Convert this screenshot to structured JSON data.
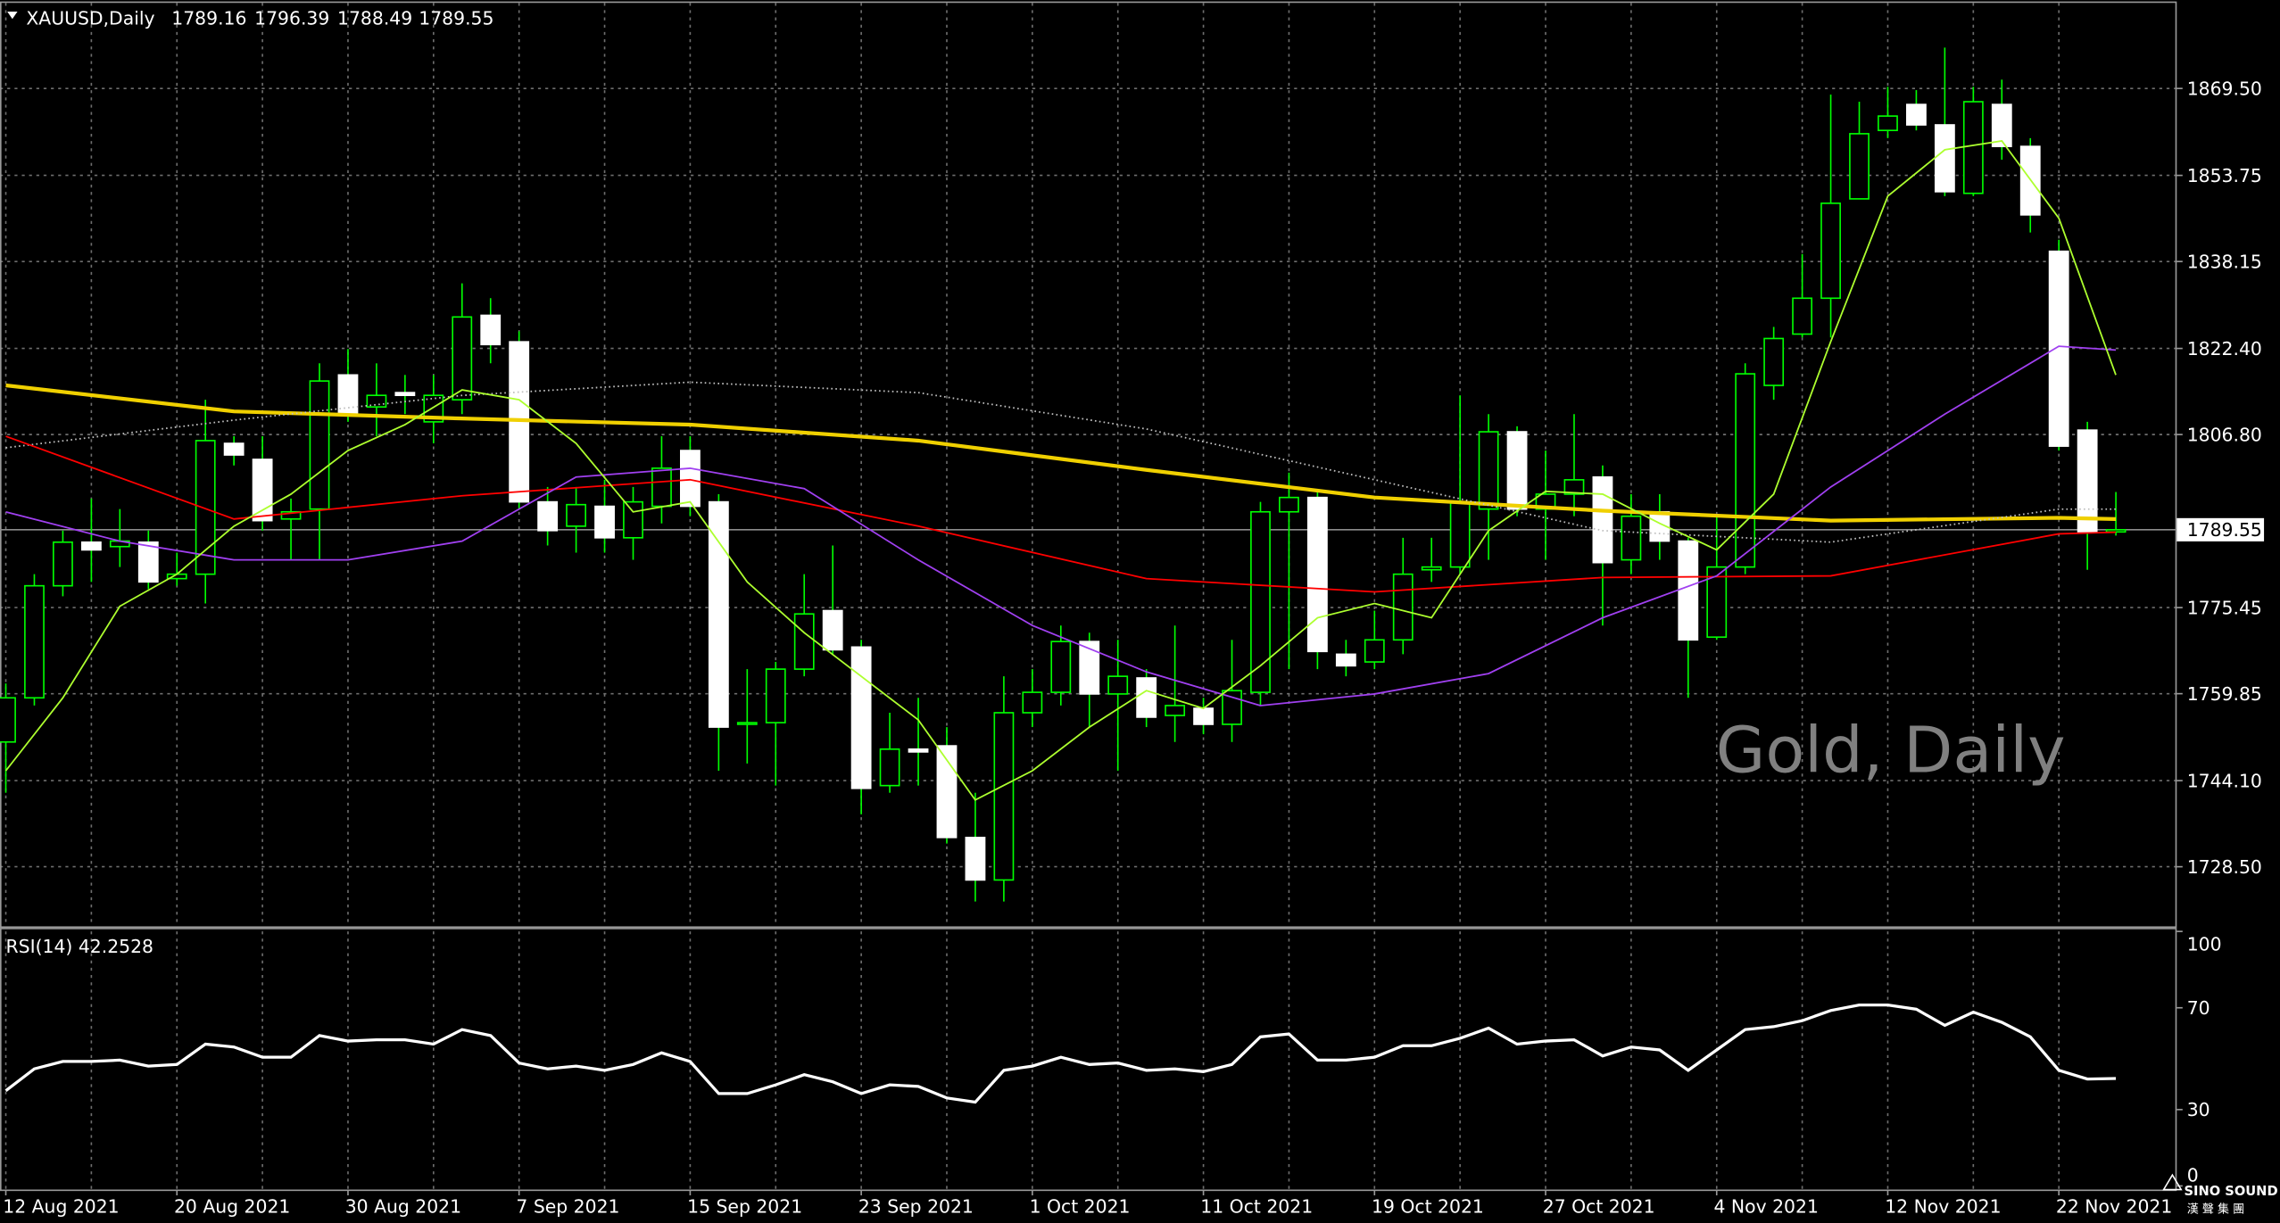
{
  "chart_data": [
    {
      "type": "candlestick",
      "symbol": "XAUUSD,Daily",
      "header_values": [
        1789.16,
        1796.39,
        1788.49,
        1789.55
      ],
      "watermark": "Gold, Daily",
      "logo": [
        "SINO SOUND",
        "漢 聲 集 團"
      ],
      "categories": [
        "12 Aug 2021",
        null,
        null,
        null,
        null,
        null,
        "20 Aug 2021",
        null,
        null,
        null,
        null,
        null,
        "30 Aug 2021",
        null,
        null,
        null,
        null,
        null,
        "7 Sep 2021",
        null,
        null,
        null,
        null,
        null,
        "15 Sep 2021",
        null,
        null,
        null,
        null,
        null,
        "23 Sep 2021",
        null,
        null,
        null,
        null,
        null,
        "1 Oct 2021",
        null,
        null,
        null,
        null,
        null,
        "11 Oct 2021",
        null,
        null,
        null,
        null,
        null,
        "19 Oct 2021",
        null,
        null,
        null,
        null,
        null,
        "27 Oct 2021",
        null,
        null,
        null,
        null,
        null,
        "4 Nov 2021",
        null,
        null,
        null,
        null,
        null,
        "12 Nov 2021",
        null,
        null,
        null,
        null,
        null,
        "22 Nov 2021",
        null,
        null
      ],
      "open": [
        1751.1,
        1759.1,
        1779.4,
        1787.3,
        1786.5,
        1787.3,
        1780.7,
        1781.5,
        1805.2,
        1802.3,
        1791.5,
        1793.3,
        1817.6,
        1811.8,
        1814.4,
        1809.1,
        1813.1,
        1828.4,
        1823.6,
        1794.6,
        1790.2,
        1793.8,
        1788.1,
        1793.8,
        1803.9,
        1794.6,
        1754.3,
        1754.6,
        1764.3,
        1774.9,
        1768.3,
        1743.2,
        1749.8,
        1750.4,
        1733.8,
        1726.1,
        1756.4,
        1760.1,
        1769.3,
        1759.8,
        1762.7,
        1755.9,
        1757.2,
        1754.3,
        1760.1,
        1792.8,
        1795.4,
        1767.0,
        1765.6,
        1769.6,
        1782.3,
        1782.8,
        1793.3,
        1807.3,
        1793.3,
        1796.0,
        1799.1,
        1784.1,
        1792.8,
        1787.5,
        1770.1,
        1782.8,
        1815.7,
        1825.0,
        1831.5,
        1849.5,
        1861.9,
        1866.6,
        1862.9,
        1850.5,
        1866.6,
        1859.0,
        1840.0,
        1807.6,
        1789.16
      ],
      "high": [
        1761.7,
        1781.5,
        1789.4,
        1795.2,
        1793.3,
        1789.4,
        1785.4,
        1813.1,
        1806.5,
        1806.5,
        1795.2,
        1819.7,
        1822.3,
        1819.7,
        1817.6,
        1817.6,
        1834.2,
        1831.5,
        1825.5,
        1797.3,
        1797.3,
        1798.6,
        1797.3,
        1806.5,
        1806.5,
        1796.0,
        1764.3,
        1765.6,
        1781.5,
        1786.7,
        1769.6,
        1756.4,
        1759.1,
        1753.8,
        1741.9,
        1763.0,
        1764.3,
        1772.2,
        1770.9,
        1769.6,
        1764.3,
        1772.2,
        1759.1,
        1769.6,
        1794.6,
        1799.9,
        1796.5,
        1769.6,
        1774.9,
        1788.1,
        1788.1,
        1813.9,
        1810.5,
        1808.3,
        1803.9,
        1810.5,
        1801.2,
        1796.0,
        1796.0,
        1788.1,
        1792.0,
        1819.7,
        1826.3,
        1839.5,
        1868.4,
        1867.1,
        1869.8,
        1869.2,
        1876.9,
        1869.8,
        1871.1,
        1860.5,
        1842.1,
        1809.1,
        1796.39
      ],
      "low": [
        1741.9,
        1757.7,
        1777.5,
        1780.1,
        1782.8,
        1778.8,
        1779.4,
        1776.2,
        1801.2,
        1789.4,
        1784.1,
        1784.1,
        1809.1,
        1806.5,
        1810.5,
        1805.2,
        1810.5,
        1819.7,
        1793.3,
        1786.7,
        1785.4,
        1785.4,
        1784.1,
        1790.7,
        1792.0,
        1745.9,
        1747.2,
        1743.2,
        1763.0,
        1767.0,
        1738.0,
        1741.9,
        1743.2,
        1732.7,
        1722.2,
        1722.2,
        1753.8,
        1757.7,
        1753.8,
        1745.9,
        1753.8,
        1751.1,
        1752.5,
        1751.1,
        1757.7,
        1764.3,
        1764.3,
        1763.0,
        1764.3,
        1767.0,
        1780.1,
        1781.5,
        1784.1,
        1792.0,
        1784.1,
        1792.0,
        1772.2,
        1781.5,
        1784.1,
        1759.1,
        1769.6,
        1781.5,
        1813.1,
        1824.4,
        1824.4,
        1849.5,
        1860.5,
        1861.9,
        1850.0,
        1850.0,
        1856.6,
        1843.4,
        1803.9,
        1782.3,
        1788.49
      ],
      "close": [
        1759.1,
        1779.4,
        1787.3,
        1785.9,
        1787.5,
        1780.1,
        1781.5,
        1805.7,
        1803.1,
        1791.2,
        1792.8,
        1816.5,
        1810.5,
        1813.9,
        1813.9,
        1813.9,
        1828.1,
        1823.1,
        1794.6,
        1789.4,
        1794.1,
        1788.1,
        1794.6,
        1800.7,
        1793.8,
        1753.8,
        1754.6,
        1764.3,
        1774.3,
        1767.8,
        1742.7,
        1749.8,
        1749.3,
        1733.8,
        1726.1,
        1756.4,
        1760.1,
        1769.3,
        1759.8,
        1763.0,
        1755.6,
        1757.7,
        1754.3,
        1760.4,
        1792.8,
        1795.4,
        1767.5,
        1764.9,
        1769.6,
        1781.5,
        1782.8,
        1794.6,
        1807.3,
        1793.3,
        1796.0,
        1798.6,
        1783.6,
        1792.0,
        1787.5,
        1769.6,
        1782.8,
        1817.8,
        1824.2,
        1831.5,
        1848.7,
        1861.3,
        1864.5,
        1862.9,
        1850.8,
        1867.1,
        1859.0,
        1846.6,
        1804.7,
        1789.2,
        1789.55
      ],
      "up_color": "#00ff00",
      "down_color": "#ffffff",
      "series": [
        {
          "color": "#f0d000",
          "style": "thick",
          "x": [
            0,
            8,
            16,
            24,
            32,
            40,
            48,
            56,
            64,
            72,
            74
          ],
          "values": [
            1815.7,
            1811.0,
            1809.7,
            1808.6,
            1805.7,
            1800.4,
            1795.4,
            1793.0,
            1791.2,
            1791.7,
            1791.5
          ]
        },
        {
          "color": "#c0c0c0",
          "style": "dotted",
          "x": [
            0,
            8,
            16,
            24,
            32,
            40,
            48,
            56,
            64,
            72,
            74
          ],
          "values": [
            1804.4,
            1809.4,
            1813.9,
            1816.3,
            1814.4,
            1807.8,
            1798.6,
            1789.4,
            1787.3,
            1793.3,
            1793.3
          ]
        },
        {
          "color": "#ff0000",
          "style": "solid",
          "x": [
            0,
            8,
            16,
            24,
            32,
            40,
            48,
            56,
            64,
            72,
            74
          ],
          "values": [
            1806.5,
            1791.5,
            1795.7,
            1798.6,
            1790.2,
            1780.7,
            1778.3,
            1780.9,
            1781.2,
            1788.8,
            1789.1
          ]
        },
        {
          "color": "#a040f0",
          "style": "solid",
          "x": [
            0,
            4,
            8,
            12,
            16,
            20,
            24,
            28,
            32,
            36,
            40,
            44,
            48,
            52,
            56,
            60,
            64,
            68,
            72,
            74
          ],
          "values": [
            1792.8,
            1787.5,
            1784.1,
            1784.1,
            1787.5,
            1799.1,
            1800.7,
            1797.0,
            1784.1,
            1772.2,
            1763.8,
            1757.7,
            1759.8,
            1763.5,
            1773.6,
            1781.2,
            1797.3,
            1810.5,
            1822.8,
            1822.1
          ]
        },
        {
          "color": "#adff2f",
          "style": "solid",
          "x": [
            0,
            2,
            4,
            6,
            8,
            10,
            12,
            14,
            16,
            18,
            20,
            22,
            24,
            26,
            28,
            30,
            32,
            34,
            36,
            38,
            40,
            42,
            44,
            46,
            48,
            50,
            52,
            54,
            56,
            58,
            60,
            62,
            64,
            66,
            68,
            70,
            72,
            74
          ],
          "values": [
            1745.9,
            1759.1,
            1775.7,
            1781.5,
            1790.2,
            1796.0,
            1803.9,
            1808.6,
            1814.9,
            1813.1,
            1805.2,
            1792.8,
            1794.6,
            1780.1,
            1770.9,
            1763.0,
            1755.1,
            1740.6,
            1745.9,
            1753.8,
            1760.4,
            1757.2,
            1764.9,
            1773.6,
            1776.2,
            1773.6,
            1789.4,
            1796.5,
            1796.0,
            1790.7,
            1785.9,
            1796.0,
            1823.6,
            1850.0,
            1858.4,
            1860.0,
            1846.0,
            1817.6
          ]
        }
      ],
      "last_price": 1789.55,
      "ylim": [
        1717.7,
        1885.0
      ],
      "yticks": [
        {
          "value": 1869.5,
          "label": "1869.50"
        },
        {
          "value": 1853.75,
          "label": "1853.75"
        },
        {
          "value": 1838.15,
          "label": "1838.15"
        },
        {
          "value": 1822.4,
          "label": "1822.40"
        },
        {
          "value": 1806.8,
          "label": "1806.80"
        },
        {
          "value": 1775.45,
          "label": "1775.45"
        },
        {
          "value": 1759.85,
          "label": "1759.85"
        },
        {
          "value": 1744.1,
          "label": "1744.10"
        },
        {
          "value": 1728.5,
          "label": "1728.50"
        }
      ],
      "grid": true
    },
    {
      "type": "line",
      "title": "RSI(14) 42.2528",
      "color": "#ffffff",
      "values": [
        37.4,
        46.0,
        48.9,
        48.9,
        49.4,
        47.1,
        47.7,
        55.7,
        54.6,
        50.6,
        50.6,
        59.1,
        56.9,
        57.4,
        57.4,
        55.7,
        61.4,
        59.1,
        48.3,
        46.0,
        47.1,
        45.4,
        47.7,
        52.3,
        48.9,
        36.3,
        36.3,
        39.7,
        43.7,
        40.9,
        36.3,
        39.7,
        39.1,
        34.6,
        32.9,
        45.4,
        47.1,
        50.6,
        47.7,
        48.3,
        45.4,
        46.0,
        44.9,
        47.7,
        58.6,
        59.7,
        49.4,
        49.4,
        50.6,
        55.1,
        55.1,
        58.0,
        62.0,
        55.7,
        56.9,
        57.4,
        51.1,
        54.6,
        53.4,
        45.4,
        53.4,
        61.4,
        62.6,
        64.9,
        68.9,
        71.1,
        71.1,
        69.4,
        63.1,
        68.3,
        64.3,
        58.6,
        45.4,
        42.0,
        42.25
      ],
      "ylim": [
        0,
        100
      ],
      "yticks": [
        100,
        70,
        30,
        0
      ]
    }
  ]
}
